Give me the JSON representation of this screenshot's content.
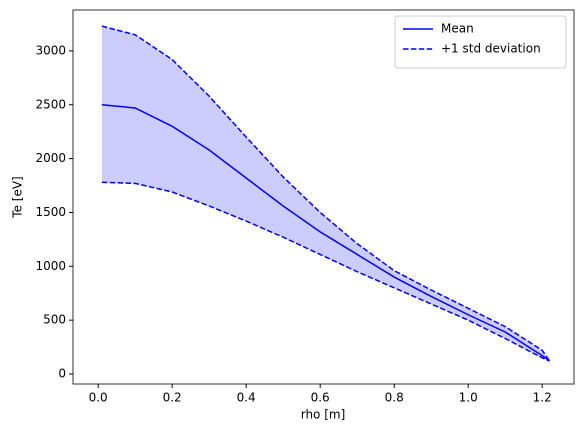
{
  "chart_data": {
    "type": "line",
    "xlabel": "rho [m]",
    "ylabel": "Te [eV]",
    "x": [
      0.01,
      0.1,
      0.2,
      0.3,
      0.4,
      0.5,
      0.6,
      0.7,
      0.8,
      0.9,
      1.0,
      1.1,
      1.2,
      1.22
    ],
    "series": [
      {
        "name": "Mean",
        "color": "#0000ff",
        "dashed": false,
        "values": [
          2500,
          2470,
          2300,
          2080,
          1820,
          1560,
          1320,
          1110,
          900,
          720,
          550,
          390,
          170,
          120
        ]
      },
      {
        "name": "+1 std deviation",
        "color": "#0000ff",
        "dashed": true,
        "values": [
          3230,
          3150,
          2920,
          2580,
          2200,
          1830,
          1500,
          1210,
          960,
          780,
          610,
          440,
          220,
          120
        ]
      },
      {
        "color": "#0000ff",
        "dashed": true,
        "values": [
          1780,
          1770,
          1690,
          1560,
          1420,
          1270,
          1110,
          950,
          800,
          650,
          500,
          330,
          150,
          120
        ]
      }
    ],
    "fill_color": "#0000ff",
    "fill_alpha": 0.2,
    "xlim": [
      -0.068,
      1.286
    ],
    "ylim": [
      -93,
      3380
    ],
    "xticks": [
      {
        "value": 0,
        "label": "0.0"
      },
      0.2,
      0.4,
      0.6,
      0.8,
      {
        "value": 1,
        "label": "1.0"
      },
      1.2
    ],
    "yticks": [
      0,
      500,
      1000,
      1500,
      2000,
      2500,
      3000
    ],
    "legend": "upper right"
  }
}
